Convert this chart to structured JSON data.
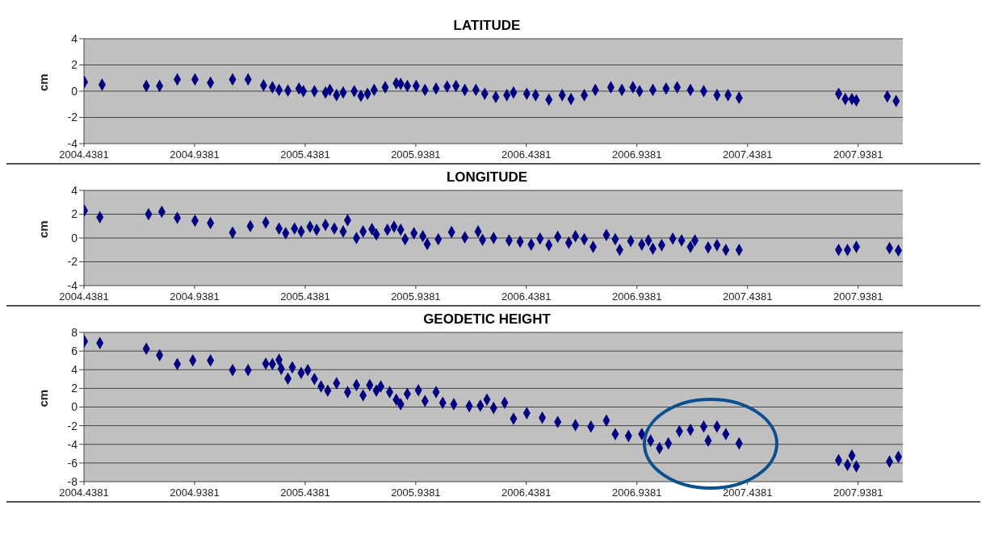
{
  "chart_data": [
    {
      "type": "scatter",
      "title": "LATITUDE",
      "ylabel": "cm",
      "color": "#000080",
      "marker": "diamond",
      "grid": "y",
      "xlim": [
        2004.4381,
        2008.14
      ],
      "ylim": [
        -4,
        4
      ],
      "xticks": [
        2004.4381,
        2004.9381,
        2005.4381,
        2005.9381,
        2006.4381,
        2006.9381,
        2007.4381,
        2007.9381
      ],
      "yticks": [
        -4,
        -2,
        0,
        2,
        4
      ],
      "x": [
        2004.44,
        2004.52,
        2004.72,
        2004.78,
        2004.86,
        2004.94,
        2005.01,
        2005.11,
        2005.18,
        2005.25,
        2005.29,
        2005.32,
        2005.36,
        2005.41,
        2005.43,
        2005.48,
        2005.53,
        2005.55,
        2005.58,
        2005.61,
        2005.66,
        2005.69,
        2005.72,
        2005.75,
        2005.8,
        2005.85,
        2005.87,
        2005.9,
        2005.94,
        2005.98,
        2006.03,
        2006.08,
        2006.12,
        2006.16,
        2006.21,
        2006.25,
        2006.3,
        2006.35,
        2006.38,
        2006.44,
        2006.48,
        2006.54,
        2006.6,
        2006.64,
        2006.7,
        2006.75,
        2006.82,
        2006.87,
        2006.92,
        2006.95,
        2007.01,
        2007.07,
        2007.12,
        2007.18,
        2007.24,
        2007.3,
        2007.35,
        2007.4,
        2007.85,
        2007.88,
        2007.91,
        2007.93,
        2008.07,
        2008.11
      ],
      "values": [
        0.7,
        0.5,
        0.4,
        0.4,
        0.9,
        0.9,
        0.65,
        0.9,
        0.9,
        0.45,
        0.3,
        0.1,
        0.05,
        0.2,
        0,
        0,
        -0.1,
        0.1,
        -0.3,
        -0.1,
        0,
        -0.35,
        -0.2,
        0.1,
        0.3,
        0.6,
        0.55,
        0.4,
        0.4,
        0.1,
        0.2,
        0.35,
        0.4,
        0.1,
        0.1,
        -0.2,
        -0.45,
        -0.3,
        -0.1,
        -0.2,
        -0.3,
        -0.65,
        -0.3,
        -0.6,
        -0.3,
        0.1,
        0.3,
        0.1,
        0.3,
        0,
        0.1,
        0.2,
        0.3,
        0.1,
        0,
        -0.3,
        -0.3,
        -0.5,
        -0.2,
        -0.6,
        -0.6,
        -0.7,
        -0.4,
        -0.75
      ]
    },
    {
      "type": "scatter",
      "title": "LONGITUDE",
      "ylabel": "cm",
      "color": "#000080",
      "marker": "diamond",
      "grid": "y",
      "xlim": [
        2004.4381,
        2008.14
      ],
      "ylim": [
        -4,
        4
      ],
      "xticks": [
        2004.4381,
        2004.9381,
        2005.4381,
        2005.9381,
        2006.4381,
        2006.9381,
        2007.4381,
        2007.9381
      ],
      "yticks": [
        -4,
        -2,
        0,
        2,
        4
      ],
      "x": [
        2004.44,
        2004.51,
        2004.73,
        2004.79,
        2004.86,
        2004.94,
        2005.01,
        2005.11,
        2005.19,
        2005.26,
        2005.32,
        2005.35,
        2005.39,
        2005.42,
        2005.46,
        2005.49,
        2005.53,
        2005.57,
        2005.61,
        2005.63,
        2005.67,
        2005.7,
        2005.74,
        2005.76,
        2005.81,
        2005.84,
        2005.87,
        2005.89,
        2005.93,
        2005.97,
        2005.99,
        2006.04,
        2006.1,
        2006.16,
        2006.22,
        2006.24,
        2006.29,
        2006.36,
        2006.41,
        2006.46,
        2006.5,
        2006.54,
        2006.58,
        2006.63,
        2006.66,
        2006.7,
        2006.74,
        2006.8,
        2006.84,
        2006.86,
        2006.91,
        2006.96,
        2006.99,
        2007.01,
        2007.05,
        2007.1,
        2007.14,
        2007.18,
        2007.2,
        2007.26,
        2007.3,
        2007.34,
        2007.4,
        2007.85,
        2007.89,
        2007.93,
        2008.08,
        2008.12
      ],
      "values": [
        2.3,
        1.75,
        2,
        2.2,
        1.7,
        1.45,
        1.25,
        0.45,
        1,
        1.3,
        0.8,
        0.4,
        0.8,
        0.55,
        0.95,
        0.7,
        1.1,
        0.8,
        0.55,
        1.5,
        0,
        0.55,
        0.75,
        0.3,
        0.7,
        0.95,
        0.7,
        -0.1,
        0.4,
        0.15,
        -0.5,
        -0.1,
        0.5,
        0.05,
        0.55,
        -0.15,
        0,
        -0.2,
        -0.3,
        -0.55,
        -0.05,
        -0.6,
        0.1,
        -0.4,
        0.15,
        -0.1,
        -0.75,
        0.25,
        -0.1,
        -1,
        -0.25,
        -0.55,
        -0.2,
        -0.9,
        -0.6,
        -0.05,
        -0.2,
        -0.75,
        -0.2,
        -0.8,
        -0.6,
        -1,
        -1,
        -1,
        -1,
        -0.75,
        -0.85,
        -1.05
      ]
    },
    {
      "type": "scatter",
      "title": "GEODETIC HEIGHT",
      "ylabel": "cm",
      "color": "#000080",
      "marker": "diamond",
      "grid": "y",
      "xlim": [
        2004.4381,
        2008.14
      ],
      "ylim": [
        -8,
        8
      ],
      "xticks": [
        2004.4381,
        2004.9381,
        2005.4381,
        2005.9381,
        2006.4381,
        2006.9381,
        2007.4381,
        2007.9381
      ],
      "yticks": [
        -8,
        -6,
        -4,
        -2,
        0,
        2,
        4,
        6,
        8
      ],
      "x": [
        2004.44,
        2004.51,
        2004.72,
        2004.78,
        2004.86,
        2004.93,
        2005.01,
        2005.11,
        2005.18,
        2005.26,
        2005.29,
        2005.32,
        2005.33,
        2005.36,
        2005.38,
        2005.42,
        2005.45,
        2005.48,
        2005.51,
        2005.54,
        2005.58,
        2005.63,
        2005.67,
        2005.7,
        2005.73,
        2005.76,
        2005.78,
        2005.82,
        2005.85,
        2005.87,
        2005.9,
        2005.95,
        2005.98,
        2006.03,
        2006.06,
        2006.11,
        2006.18,
        2006.23,
        2006.26,
        2006.29,
        2006.34,
        2006.38,
        2006.44,
        2006.51,
        2006.58,
        2006.66,
        2006.73,
        2006.8,
        2006.84,
        2006.9,
        2006.96,
        2007,
        2007.04,
        2007.08,
        2007.13,
        2007.18,
        2007.24,
        2007.26,
        2007.3,
        2007.34,
        2007.4,
        2007.85,
        2007.89,
        2007.91,
        2007.93,
        2008.08,
        2008.12
      ],
      "values": [
        7.05,
        6.85,
        6.25,
        5.55,
        4.6,
        5,
        5,
        3.95,
        3.95,
        4.65,
        4.6,
        5.05,
        4.1,
        3.05,
        4.25,
        3.65,
        3.95,
        3,
        2.2,
        1.75,
        2.55,
        1.6,
        2.35,
        1.25,
        2.35,
        1.75,
        2.2,
        1.6,
        0.8,
        0.3,
        1.4,
        1.8,
        0.65,
        1.6,
        0.45,
        0.3,
        0.1,
        0.15,
        0.8,
        -0.1,
        0.45,
        -1.25,
        -0.65,
        -1.15,
        -1.6,
        -1.95,
        -2.1,
        -1.45,
        -2.9,
        -3.1,
        -2.9,
        -3.6,
        -4.4,
        -3.9,
        -2.6,
        -2.45,
        -2.1,
        -3.6,
        -2.1,
        -2.9,
        -3.9,
        -5.7,
        -6.2,
        -5.2,
        -6.35,
        -5.85,
        -5.35
      ]
    }
  ]
}
